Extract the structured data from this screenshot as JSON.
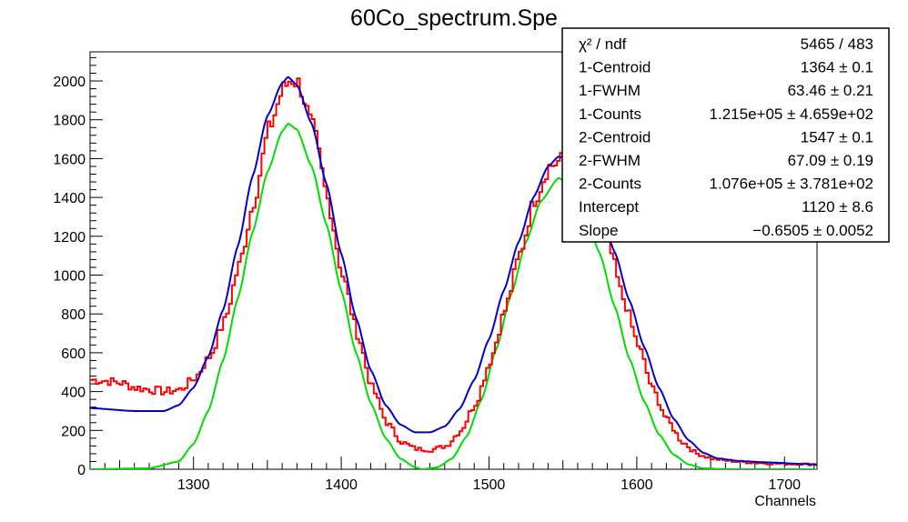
{
  "chart_data": {
    "type": "histogram",
    "title": "60Co_spectrum.Spe",
    "xlabel": "Channels",
    "ylabel": "",
    "xlim": [
      1230,
      1722
    ],
    "ylim": [
      0,
      2150
    ],
    "x_ticks": [
      1300,
      1400,
      1500,
      1600,
      1700
    ],
    "y_ticks": [
      0,
      200,
      400,
      600,
      800,
      1000,
      1200,
      1400,
      1600,
      1800,
      2000
    ],
    "grid": false,
    "stats_box": {
      "placement": "top-right",
      "rows": [
        {
          "label": "χ² / ndf",
          "value": "5465 / 483"
        },
        {
          "label": "1-Centroid",
          "value": "1364 ± 0.1"
        },
        {
          "label": "1-FWHM",
          "value": "63.46 ± 0.21"
        },
        {
          "label": "1-Counts",
          "value": "1.215e+05 ± 4.659e+02"
        },
        {
          "label": "2-Centroid",
          "value": "1547 ± 0.1"
        },
        {
          "label": "2-FWHM",
          "value": "67.09 ± 0.19"
        },
        {
          "label": "2-Counts",
          "value": "1.076e+05 ± 3.781e+02"
        },
        {
          "label": "Intercept",
          "value": "1120 ± 8.6"
        },
        {
          "label": "Slope",
          "value": "−0.6505 ± 0.0052"
        }
      ]
    },
    "series": [
      {
        "role": "measured spectrum",
        "color": "#ff0000",
        "style": "step",
        "points": [
          [
            1230,
            460
          ],
          [
            1240,
            455
          ],
          [
            1250,
            445
          ],
          [
            1260,
            420
          ],
          [
            1270,
            410
          ],
          [
            1280,
            400
          ],
          [
            1290,
            410
          ],
          [
            1300,
            470
          ],
          [
            1310,
            580
          ],
          [
            1320,
            760
          ],
          [
            1330,
            1050
          ],
          [
            1340,
            1380
          ],
          [
            1350,
            1750
          ],
          [
            1360,
            1960
          ],
          [
            1365,
            2010
          ],
          [
            1370,
            1990
          ],
          [
            1380,
            1760
          ],
          [
            1390,
            1390
          ],
          [
            1400,
            1000
          ],
          [
            1410,
            700
          ],
          [
            1420,
            420
          ],
          [
            1430,
            240
          ],
          [
            1440,
            140
          ],
          [
            1450,
            105
          ],
          [
            1460,
            100
          ],
          [
            1470,
            120
          ],
          [
            1480,
            200
          ],
          [
            1490,
            340
          ],
          [
            1500,
            560
          ],
          [
            1510,
            820
          ],
          [
            1520,
            1110
          ],
          [
            1530,
            1390
          ],
          [
            1540,
            1560
          ],
          [
            1550,
            1600
          ],
          [
            1560,
            1550
          ],
          [
            1570,
            1400
          ],
          [
            1580,
            1150
          ],
          [
            1590,
            880
          ],
          [
            1600,
            640
          ],
          [
            1610,
            410
          ],
          [
            1620,
            250
          ],
          [
            1630,
            140
          ],
          [
            1640,
            80
          ],
          [
            1650,
            55
          ],
          [
            1660,
            45
          ],
          [
            1670,
            38
          ],
          [
            1680,
            33
          ],
          [
            1690,
            30
          ],
          [
            1700,
            28
          ],
          [
            1710,
            27
          ],
          [
            1720,
            25
          ]
        ]
      },
      {
        "role": "total fit",
        "color": "#0000cc",
        "style": "curve",
        "points": [
          [
            1230,
            315
          ],
          [
            1260,
            300
          ],
          [
            1280,
            300
          ],
          [
            1290,
            330
          ],
          [
            1300,
            420
          ],
          [
            1310,
            580
          ],
          [
            1320,
            820
          ],
          [
            1330,
            1150
          ],
          [
            1340,
            1510
          ],
          [
            1350,
            1820
          ],
          [
            1360,
            1990
          ],
          [
            1364,
            2020
          ],
          [
            1370,
            1980
          ],
          [
            1380,
            1780
          ],
          [
            1390,
            1470
          ],
          [
            1400,
            1110
          ],
          [
            1410,
            780
          ],
          [
            1420,
            510
          ],
          [
            1430,
            330
          ],
          [
            1440,
            230
          ],
          [
            1450,
            190
          ],
          [
            1460,
            190
          ],
          [
            1470,
            220
          ],
          [
            1480,
            310
          ],
          [
            1490,
            460
          ],
          [
            1500,
            670
          ],
          [
            1510,
            920
          ],
          [
            1520,
            1170
          ],
          [
            1530,
            1400
          ],
          [
            1540,
            1560
          ],
          [
            1547,
            1610
          ],
          [
            1555,
            1600
          ],
          [
            1565,
            1520
          ],
          [
            1575,
            1350
          ],
          [
            1585,
            1120
          ],
          [
            1595,
            870
          ],
          [
            1605,
            630
          ],
          [
            1615,
            420
          ],
          [
            1625,
            260
          ],
          [
            1635,
            150
          ],
          [
            1645,
            85
          ],
          [
            1655,
            55
          ],
          [
            1670,
            42
          ],
          [
            1690,
            35
          ],
          [
            1710,
            28
          ],
          [
            1722,
            25
          ]
        ]
      },
      {
        "role": "gaussian components",
        "color": "#00dd00",
        "style": "curve",
        "points": [
          [
            1230,
            0
          ],
          [
            1270,
            5
          ],
          [
            1290,
            40
          ],
          [
            1300,
            130
          ],
          [
            1310,
            300
          ],
          [
            1320,
            560
          ],
          [
            1330,
            880
          ],
          [
            1340,
            1220
          ],
          [
            1350,
            1530
          ],
          [
            1360,
            1740
          ],
          [
            1364,
            1780
          ],
          [
            1370,
            1750
          ],
          [
            1380,
            1560
          ],
          [
            1390,
            1260
          ],
          [
            1400,
            920
          ],
          [
            1410,
            600
          ],
          [
            1420,
            340
          ],
          [
            1430,
            160
          ],
          [
            1440,
            55
          ],
          [
            1450,
            10
          ],
          [
            1455,
            0
          ],
          [
            1465,
            10
          ],
          [
            1475,
            55
          ],
          [
            1485,
            170
          ],
          [
            1495,
            360
          ],
          [
            1505,
            620
          ],
          [
            1515,
            900
          ],
          [
            1525,
            1170
          ],
          [
            1535,
            1380
          ],
          [
            1547,
            1500
          ],
          [
            1555,
            1470
          ],
          [
            1565,
            1330
          ],
          [
            1575,
            1110
          ],
          [
            1585,
            840
          ],
          [
            1595,
            570
          ],
          [
            1605,
            350
          ],
          [
            1615,
            180
          ],
          [
            1625,
            75
          ],
          [
            1635,
            25
          ],
          [
            1645,
            5
          ],
          [
            1660,
            0
          ],
          [
            1722,
            0
          ]
        ]
      }
    ]
  }
}
